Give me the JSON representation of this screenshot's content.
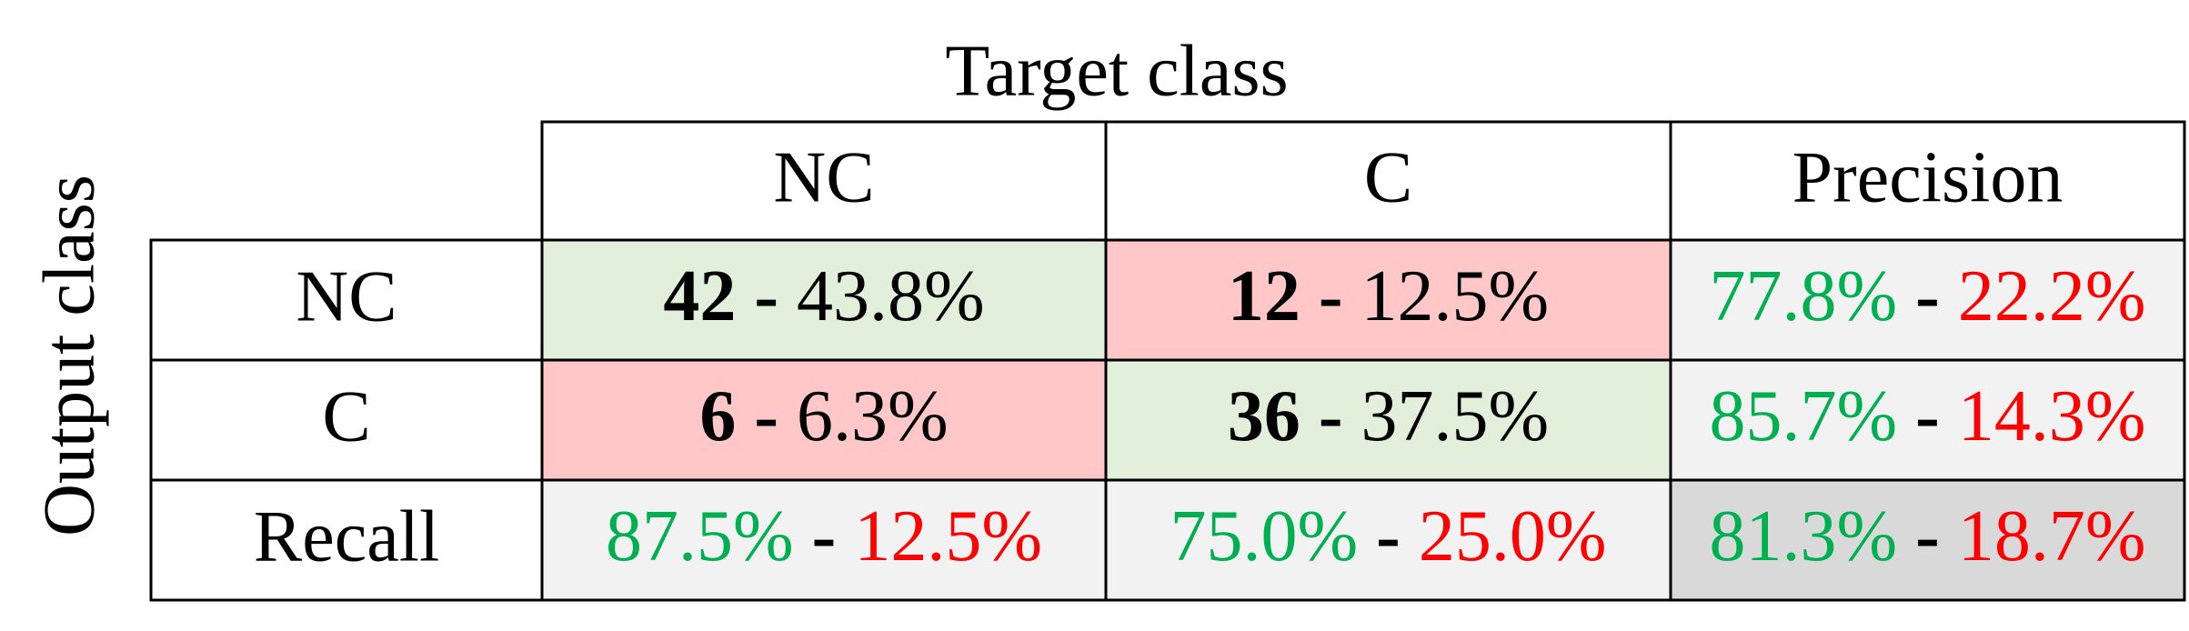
{
  "title_x": "Target class",
  "title_y": "Output class",
  "separator": "-",
  "columns": [
    "NC",
    "C",
    "Precision"
  ],
  "rows": [
    {
      "label": "NC",
      "cells": [
        {
          "count": 42,
          "percent": "43.8%"
        },
        {
          "count": 12,
          "percent": "12.5%"
        }
      ],
      "precision": [
        "77.8%",
        "22.2%"
      ]
    },
    {
      "label": "C",
      "cells": [
        {
          "count": 6,
          "percent": "6.3%"
        },
        {
          "count": 36,
          "percent": "37.5%"
        }
      ],
      "precision": [
        "85.7%",
        "14.3%"
      ]
    }
  ],
  "recall": {
    "label": "Recall",
    "cells": [
      [
        "87.5%",
        "12.5%"
      ],
      [
        "75.0%",
        "25.0%"
      ]
    ],
    "overall": [
      "81.3%",
      "18.7%"
    ]
  }
}
